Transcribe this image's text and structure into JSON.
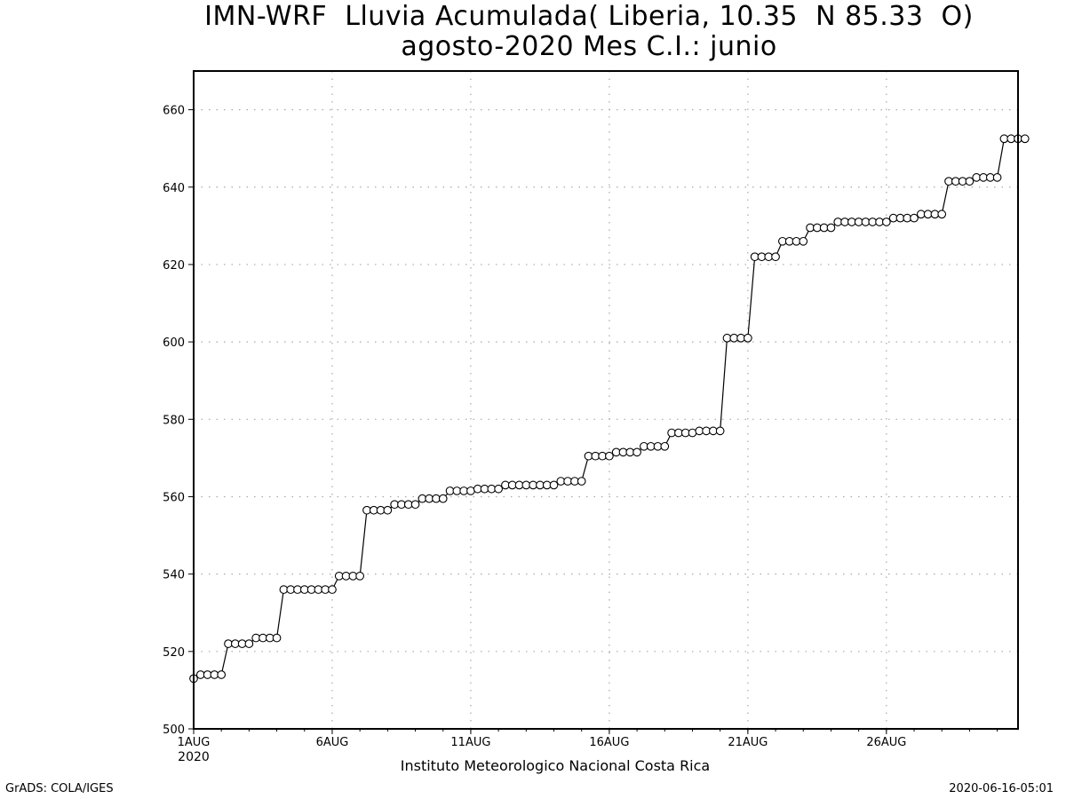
{
  "chart_data": {
    "type": "line",
    "title": "IMN-WRF  Lluvia Acumulada( Liberia, 10.35  N 85.33  O)",
    "subtitle": "agosto-2020 Mes C.I.: junio",
    "xlabel": "Instituto Meteorologico Nacional Costa Rica",
    "ylabel": "",
    "x_start": 0,
    "x_end": 29.75,
    "x_step_days": 0.25,
    "x_ticks": [
      {
        "day": 0,
        "label": "1AUG"
      },
      {
        "day": 5,
        "label": "6AUG"
      },
      {
        "day": 10,
        "label": "11AUG"
      },
      {
        "day": 15,
        "label": "16AUG"
      },
      {
        "day": 20,
        "label": "21AUG"
      },
      {
        "day": 25,
        "label": "26AUG"
      }
    ],
    "x_tick_sublabel": "2020",
    "ylim": [
      500,
      670
    ],
    "y_ticks": [
      500,
      520,
      540,
      560,
      580,
      600,
      620,
      640,
      660
    ],
    "grid": true,
    "series": [
      {
        "marker": "open-circle",
        "values": [
          513,
          514,
          514,
          514,
          514,
          522,
          522,
          522,
          522,
          523.5,
          523.5,
          523.5,
          523.5,
          536,
          536,
          536,
          536,
          536,
          536,
          536,
          536,
          539.5,
          539.5,
          539.5,
          539.5,
          556.5,
          556.5,
          556.5,
          556.5,
          558,
          558,
          558,
          558,
          559.5,
          559.5,
          559.5,
          559.5,
          561.5,
          561.5,
          561.5,
          561.5,
          562,
          562,
          562,
          562,
          563,
          563,
          563,
          563,
          563,
          563,
          563,
          563,
          564,
          564,
          564,
          564,
          570.5,
          570.5,
          570.5,
          570.5,
          571.5,
          571.5,
          571.5,
          571.5,
          573,
          573,
          573,
          573,
          576.5,
          576.5,
          576.5,
          576.5,
          577,
          577,
          577,
          577,
          601,
          601,
          601,
          601,
          622,
          622,
          622,
          622,
          626,
          626,
          626,
          626,
          629.5,
          629.5,
          629.5,
          629.5,
          631,
          631,
          631,
          631,
          631,
          631,
          631,
          631,
          632,
          632,
          632,
          632,
          633,
          633,
          633,
          633,
          641.5,
          641.5,
          641.5,
          641.5,
          642.5,
          642.5,
          642.5,
          642.5,
          652.5,
          652.5,
          652.5,
          652.5
        ]
      }
    ]
  },
  "footer": {
    "left": "GrADS: COLA/IGES",
    "right": "2020-06-16-05:01"
  }
}
